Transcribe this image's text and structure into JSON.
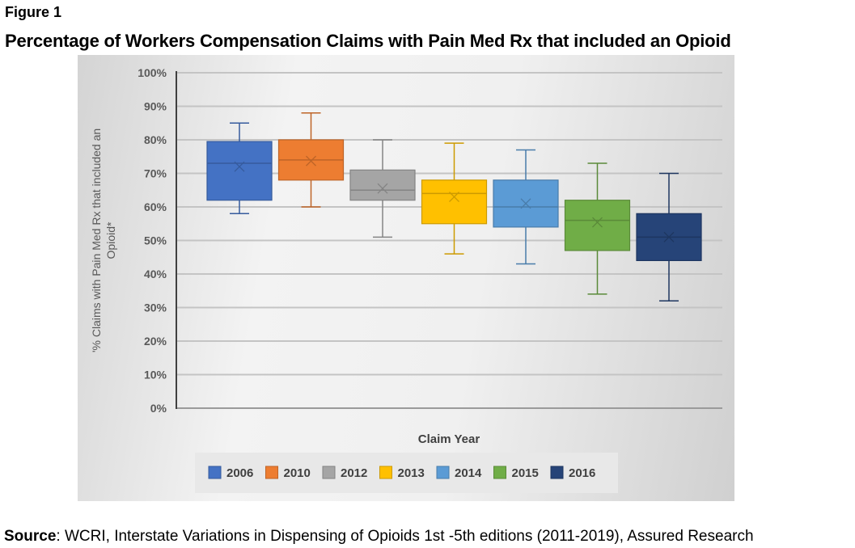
{
  "figure_label": "Figure 1",
  "title": "Percentage of Workers Compensation Claims with Pain Med Rx that included an Opioid",
  "source": {
    "label": "Source",
    "text": ": WCRI, Interstate Variations in Dispensing of Opioids 1st -5th editions (2011-2019), Assured Research"
  },
  "chart_data": {
    "type": "box",
    "title": "Percentage of Workers Compensation Claims with Pain Med Rx that included an Opioid",
    "xlabel": "Claim Year",
    "ylabel": "'% Claims with Pain Med Rx that included an Opioid*",
    "ylim": [
      0,
      100
    ],
    "yticks": [
      0,
      10,
      20,
      30,
      40,
      50,
      60,
      70,
      80,
      90,
      100
    ],
    "ytick_labels": [
      "0%",
      "10%",
      "20%",
      "30%",
      "40%",
      "50%",
      "60%",
      "70%",
      "80%",
      "90%",
      "100%"
    ],
    "grid": true,
    "legend_position": "bottom",
    "series": [
      {
        "name": "2006",
        "color": "#4472C4",
        "min": 58,
        "q1": 62,
        "median": 73,
        "q3": 79.5,
        "max": 85,
        "mean": 72
      },
      {
        "name": "2010",
        "color": "#ED7D31",
        "min": 60,
        "q1": 68,
        "median": 74,
        "q3": 80,
        "max": 88,
        "mean": 73.7
      },
      {
        "name": "2012",
        "color": "#A5A5A5",
        "min": 51,
        "q1": 62,
        "median": 65,
        "q3": 71,
        "max": 80,
        "mean": 65.5
      },
      {
        "name": "2013",
        "color": "#FFC000",
        "min": 46,
        "q1": 55,
        "median": 64,
        "q3": 68,
        "max": 79,
        "mean": 63
      },
      {
        "name": "2014",
        "color": "#5B9BD5",
        "min": 43,
        "q1": 54,
        "median": 60,
        "q3": 68,
        "max": 77,
        "mean": 61
      },
      {
        "name": "2015",
        "color": "#70AD47",
        "min": 34,
        "q1": 47,
        "median": 56,
        "q3": 62,
        "max": 73,
        "mean": 55.4
      },
      {
        "name": "2016",
        "color": "#264478",
        "min": 32,
        "q1": 44,
        "median": 51,
        "q3": 58,
        "max": 70,
        "mean": 51
      }
    ]
  }
}
